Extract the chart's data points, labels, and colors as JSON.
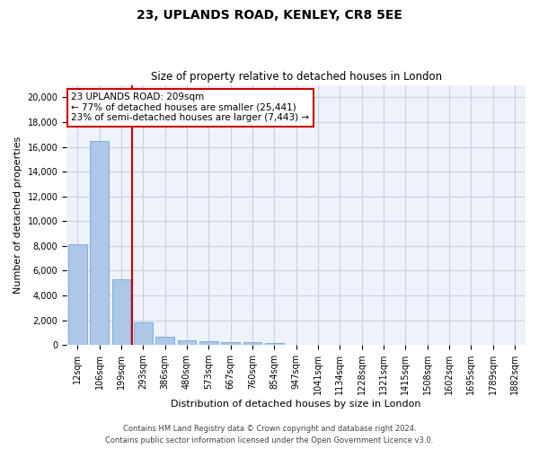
{
  "title1": "23, UPLANDS ROAD, KENLEY, CR8 5EE",
  "title2": "Size of property relative to detached houses in London",
  "xlabel": "Distribution of detached houses by size in London",
  "ylabel": "Number of detached properties",
  "categories": [
    "12sqm",
    "106sqm",
    "199sqm",
    "293sqm",
    "386sqm",
    "480sqm",
    "573sqm",
    "667sqm",
    "760sqm",
    "854sqm",
    "947sqm",
    "1041sqm",
    "1134sqm",
    "1228sqm",
    "1321sqm",
    "1415sqm",
    "1508sqm",
    "1602sqm",
    "1695sqm",
    "1789sqm",
    "1882sqm"
  ],
  "values": [
    8100,
    16500,
    5300,
    1850,
    650,
    350,
    270,
    230,
    210,
    180,
    0,
    0,
    0,
    0,
    0,
    0,
    0,
    0,
    0,
    0,
    0
  ],
  "bar_color": "#aec6e8",
  "bar_edge_color": "#5a9fd4",
  "annotation_text": "23 UPLANDS ROAD: 209sqm\n← 77% of detached houses are smaller (25,441)\n23% of semi-detached houses are larger (7,443) →",
  "annotation_box_color": "#ffffff",
  "annotation_box_edge": "#cc0000",
  "vline_color": "#cc0000",
  "vline_x_index": 2,
  "ylim": [
    0,
    21000
  ],
  "yticks": [
    0,
    2000,
    4000,
    6000,
    8000,
    10000,
    12000,
    14000,
    16000,
    18000,
    20000
  ],
  "footer1": "Contains HM Land Registry data © Crown copyright and database right 2024.",
  "footer2": "Contains public sector information licensed under the Open Government Licence v3.0.",
  "grid_color": "#c8d0e0",
  "bg_color": "#eef2fa",
  "title1_fontsize": 10,
  "title2_fontsize": 8.5,
  "xlabel_fontsize": 8,
  "ylabel_fontsize": 8,
  "tick_fontsize": 7,
  "footer_fontsize": 6
}
